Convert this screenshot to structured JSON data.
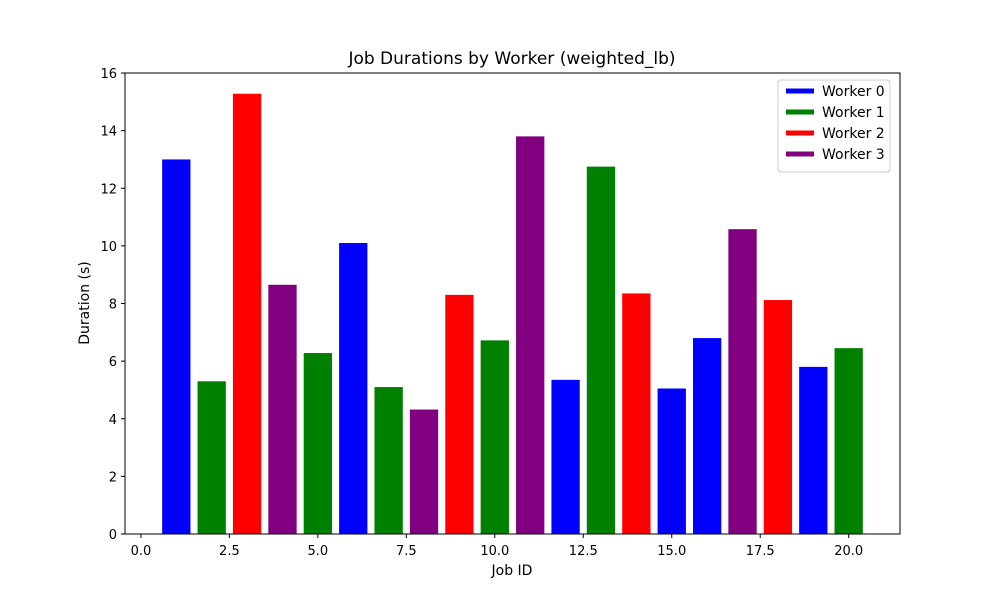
{
  "chart_data": {
    "type": "bar",
    "title": "Job Durations by Worker (weighted_lb)",
    "xlabel": "Job ID",
    "ylabel": "Duration (s)",
    "xlim": [
      -0.45,
      21.45
    ],
    "ylim": [
      0,
      16
    ],
    "xticks": [
      0.0,
      2.5,
      5.0,
      7.5,
      10.0,
      12.5,
      15.0,
      17.5,
      20.0
    ],
    "xtick_labels": [
      "0.0",
      "2.5",
      "5.0",
      "7.5",
      "10.0",
      "12.5",
      "15.0",
      "17.5",
      "20.0"
    ],
    "yticks": [
      0,
      2,
      4,
      6,
      8,
      10,
      12,
      14,
      16
    ],
    "ytick_labels": [
      "0",
      "2",
      "4",
      "6",
      "8",
      "10",
      "12",
      "14",
      "16"
    ],
    "bar_width": 0.8,
    "grid": false,
    "legend_position": "top-right",
    "series": [
      {
        "name": "Worker 0",
        "color": "#0000ff",
        "x": [
          1,
          6,
          12,
          15,
          16,
          19
        ],
        "values": [
          13.0,
          10.1,
          5.35,
          5.05,
          6.8,
          5.8
        ]
      },
      {
        "name": "Worker 1",
        "color": "#008000",
        "x": [
          2,
          5,
          7,
          10,
          13,
          20
        ],
        "values": [
          5.3,
          6.28,
          5.1,
          6.72,
          12.75,
          6.45
        ]
      },
      {
        "name": "Worker 2",
        "color": "#ff0000",
        "x": [
          3,
          9,
          14,
          18
        ],
        "values": [
          15.28,
          8.3,
          8.35,
          8.12
        ]
      },
      {
        "name": "Worker 3",
        "color": "#800080",
        "x": [
          4,
          8,
          11,
          17
        ],
        "values": [
          8.65,
          4.32,
          13.8,
          10.58
        ]
      }
    ]
  }
}
